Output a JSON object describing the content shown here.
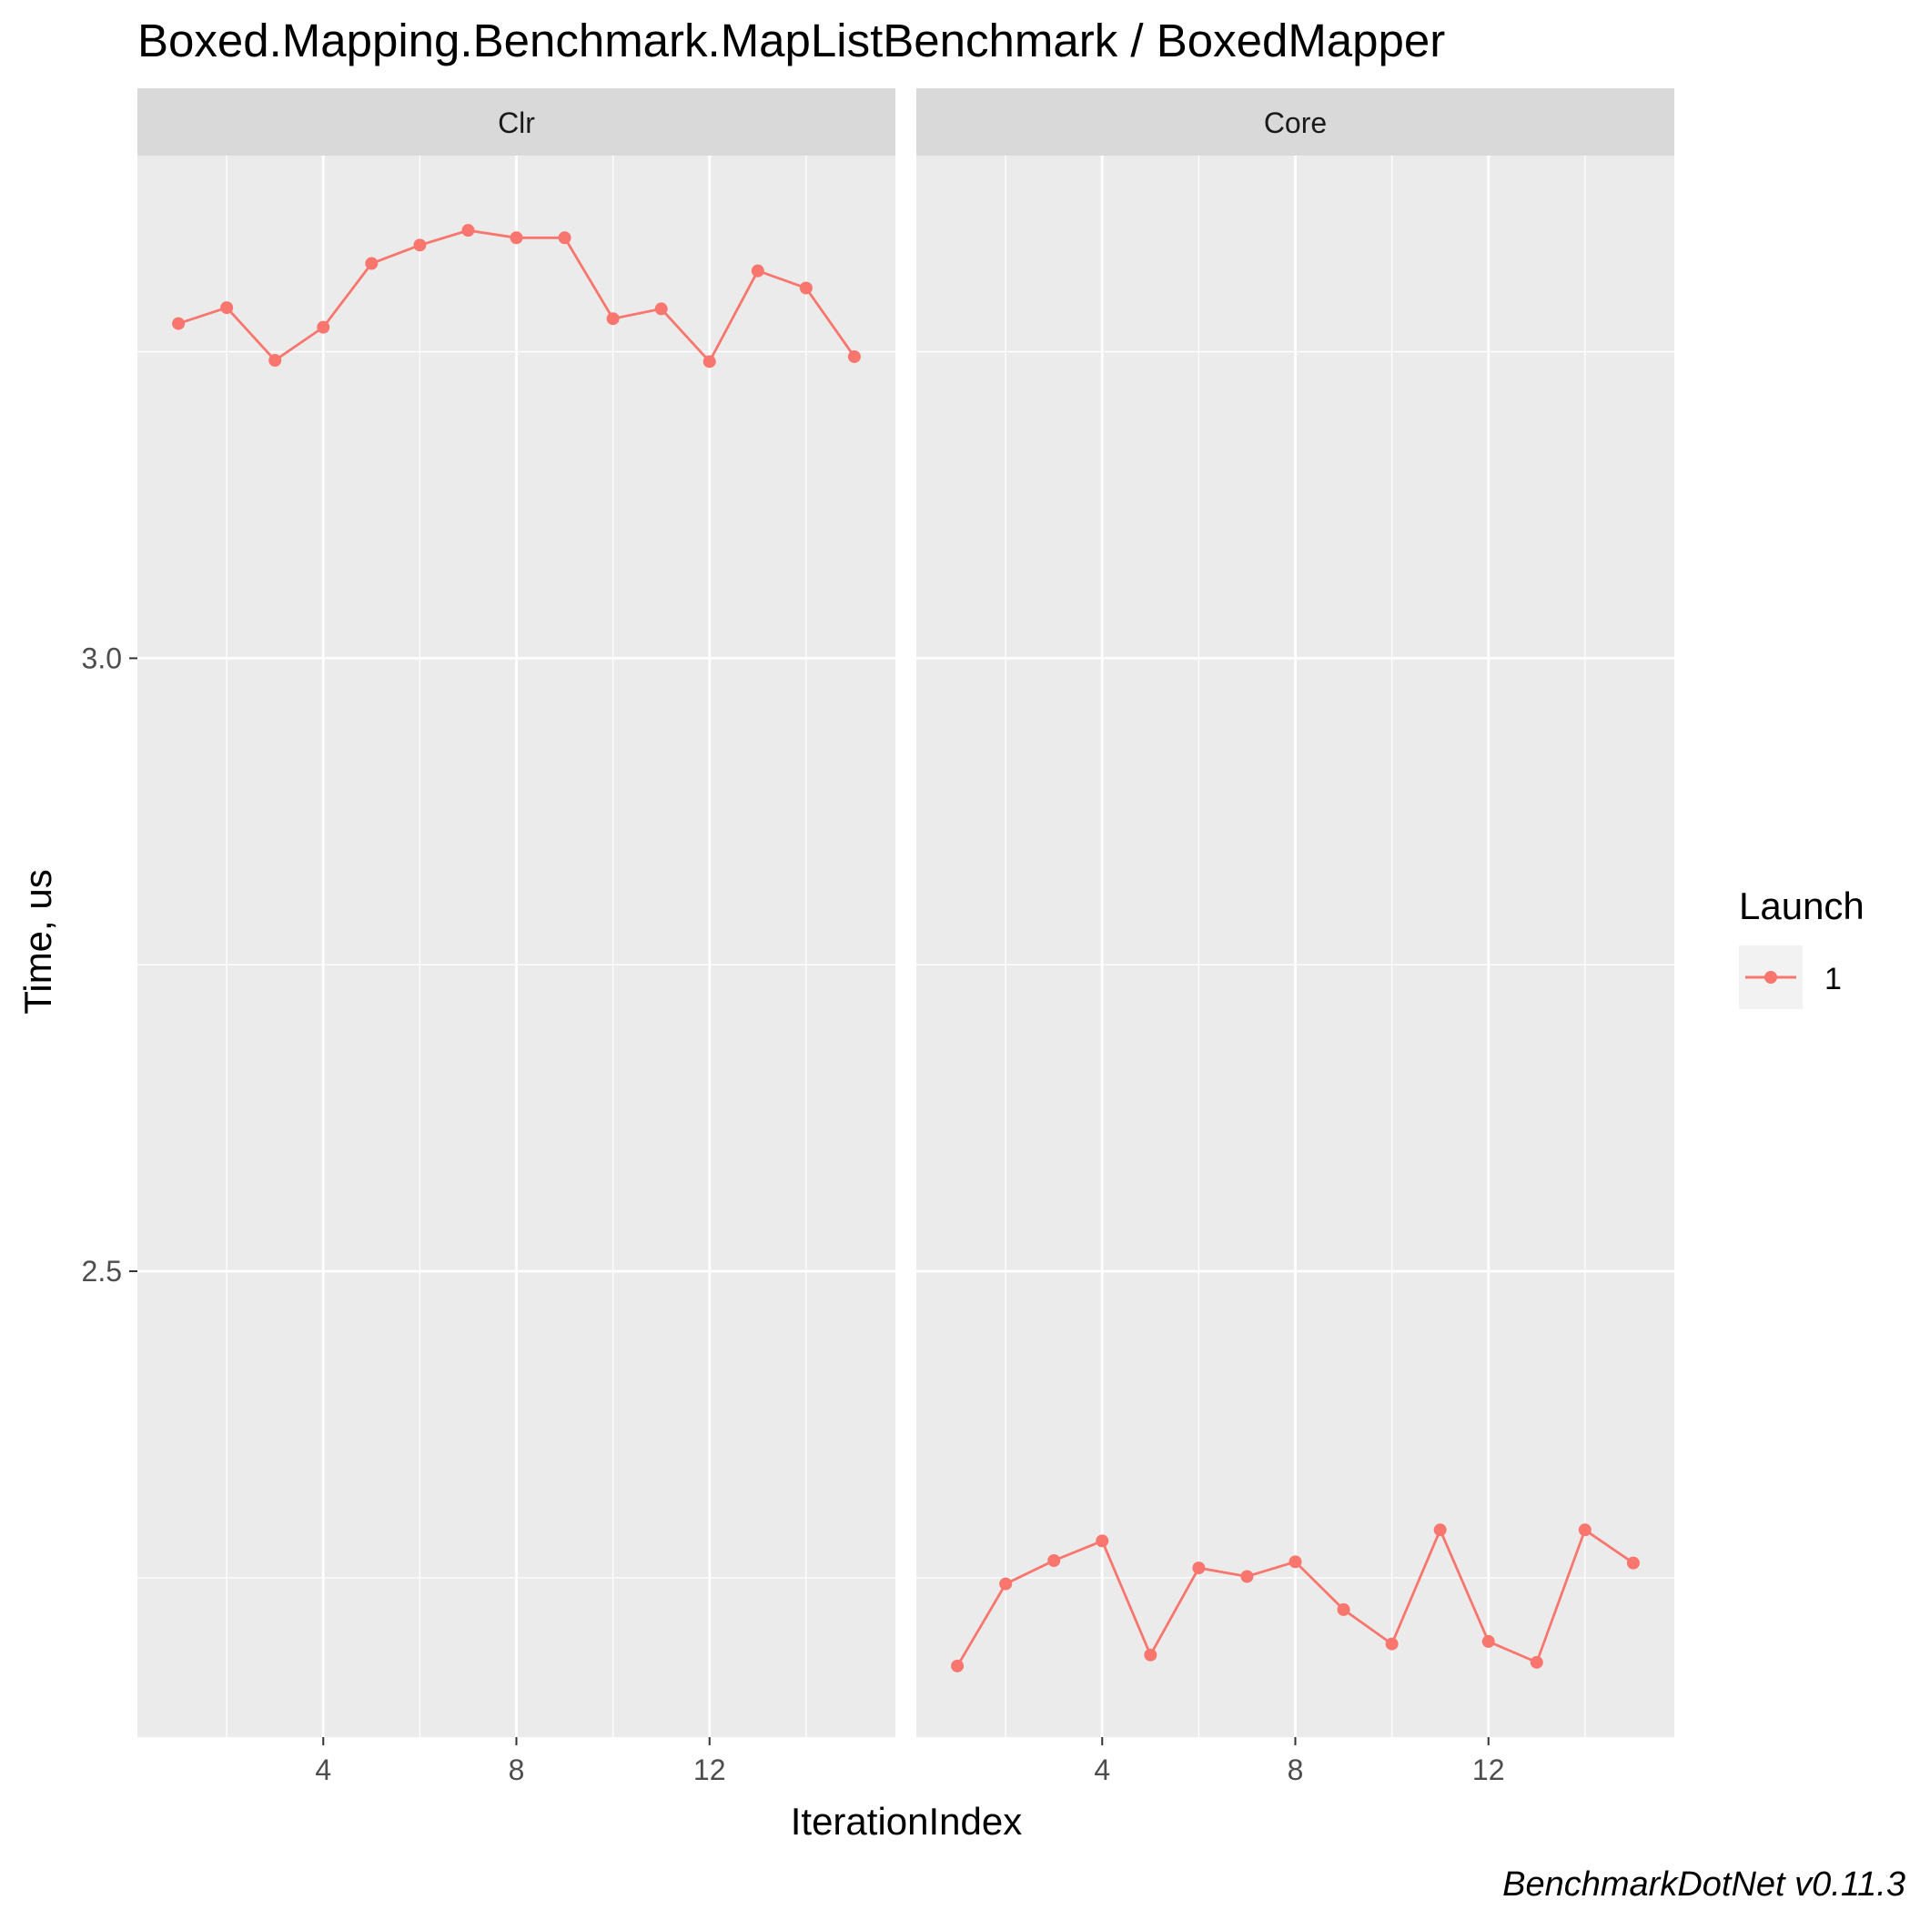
{
  "chart_data": {
    "type": "line",
    "title": "Boxed.Mapping.Benchmark.MapListBenchmark / BoxedMapper",
    "xlabel": "IterationIndex",
    "ylabel": "Time, us",
    "caption": "BenchmarkDotNet v0.11.3",
    "xlim": [
      0.15,
      15.85
    ],
    "ylim": [
      2.12,
      3.41
    ],
    "x_ticks": [
      4,
      8,
      12
    ],
    "y_ticks": [
      2.5,
      3.0
    ],
    "grid": true,
    "legend": {
      "title": "Launch",
      "position": "right",
      "entries": [
        "1"
      ]
    },
    "series_color": "#F8766D",
    "panels": [
      {
        "name": "Clr",
        "series": [
          {
            "name": "1",
            "x": [
              1,
              2,
              3,
              4,
              5,
              6,
              7,
              8,
              9,
              10,
              11,
              12,
              13,
              14,
              15
            ],
            "y": [
              3.273,
              3.286,
              3.243,
              3.27,
              3.322,
              3.337,
              3.349,
              3.343,
              3.343,
              3.277,
              3.285,
              3.242,
              3.316,
              3.302,
              3.246
            ]
          }
        ]
      },
      {
        "name": "Core",
        "series": [
          {
            "name": "1",
            "x": [
              1,
              2,
              3,
              4,
              5,
              6,
              7,
              8,
              9,
              10,
              11,
              12,
              13,
              14,
              15
            ],
            "y": [
              2.178,
              2.245,
              2.264,
              2.28,
              2.187,
              2.258,
              2.251,
              2.263,
              2.224,
              2.196,
              2.289,
              2.198,
              2.181,
              2.289,
              2.262
            ]
          }
        ]
      }
    ]
  }
}
